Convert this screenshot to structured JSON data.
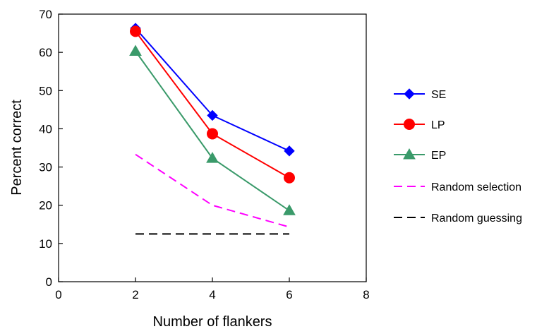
{
  "chart_data": {
    "type": "line",
    "title": "",
    "xlabel": "Number of flankers",
    "ylabel": "Percent correct",
    "xlim": [
      0,
      8
    ],
    "ylim": [
      0,
      70
    ],
    "xticks": [
      "0",
      "2",
      "4",
      "6",
      "8"
    ],
    "yticks": [
      "0",
      "10",
      "20",
      "30",
      "40",
      "50",
      "60",
      "70"
    ],
    "grid": false,
    "legend_position": "right",
    "series": [
      {
        "name": "SE",
        "x": [
          2,
          4,
          6
        ],
        "values": [
          66.3,
          43.5,
          34.2
        ],
        "color": "#0000ff",
        "marker": "diamond",
        "line": "solid"
      },
      {
        "name": "LP",
        "x": [
          2,
          4,
          6
        ],
        "values": [
          65.5,
          38.7,
          27.2
        ],
        "color": "#ff0000",
        "marker": "circle",
        "line": "solid"
      },
      {
        "name": "EP",
        "x": [
          2,
          4,
          6
        ],
        "values": [
          60.3,
          32.3,
          18.6
        ],
        "color": "#3a9a6a",
        "marker": "triangle",
        "line": "solid"
      },
      {
        "name": "Random selection",
        "x": [
          2,
          4,
          6
        ],
        "values": [
          33.3,
          20.0,
          14.3
        ],
        "color": "#ff00ff",
        "marker": "none",
        "line": "dashed"
      },
      {
        "name": "Random guessing",
        "x": [
          2,
          4,
          6
        ],
        "values": [
          12.5,
          12.5,
          12.5
        ],
        "color": "#000000",
        "marker": "none",
        "line": "dashed"
      }
    ]
  }
}
